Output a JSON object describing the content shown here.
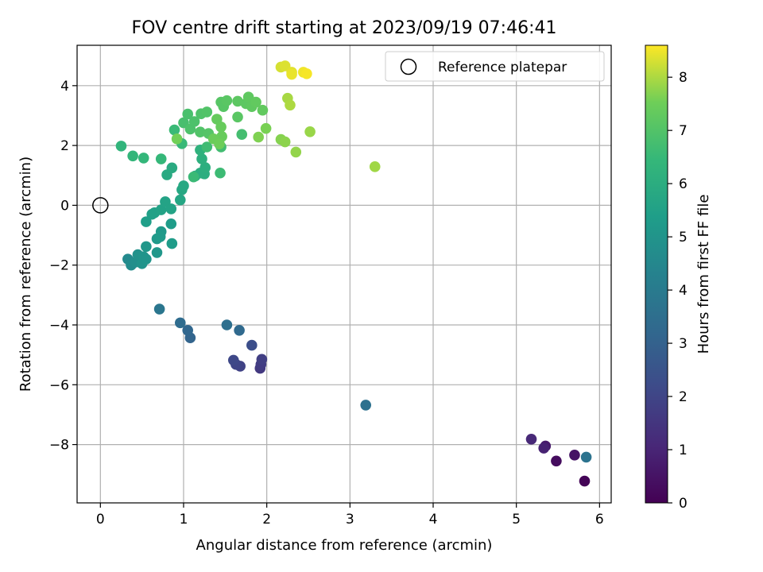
{
  "chart_data": {
    "type": "scatter",
    "title": "FOV centre drift starting at 2023/09/19 07:46:41",
    "xlabel": "Angular distance from reference (arcmin)",
    "ylabel": "Rotation from reference (arcmin)",
    "xlim": [
      -0.28,
      6.14
    ],
    "ylim": [
      -9.95,
      5.35
    ],
    "xticks": [
      0,
      1,
      2,
      3,
      4,
      5,
      6
    ],
    "yticks": [
      -8,
      -6,
      -4,
      -2,
      0,
      2,
      4
    ],
    "xtick_labels": [
      "0",
      "1",
      "2",
      "3",
      "4",
      "5",
      "6"
    ],
    "ytick_labels": [
      "−8",
      "−6",
      "−4",
      "−2",
      "0",
      "2",
      "4"
    ],
    "grid": true,
    "colormap": "viridis",
    "colorbar": {
      "label": "Hours from first FF file",
      "min": 0,
      "max": 8.6,
      "ticks": [
        0,
        1,
        2,
        3,
        4,
        5,
        6,
        7,
        8
      ],
      "tick_labels": [
        "0",
        "1",
        "2",
        "3",
        "4",
        "5",
        "6",
        "7",
        "8"
      ]
    },
    "legend": {
      "label": "Reference platepar",
      "location": "top-right"
    },
    "reference": {
      "x": 0,
      "y": 0
    },
    "points": [
      [
        5.82,
        -9.22,
        0.1
      ],
      [
        5.48,
        -8.55,
        0.3
      ],
      [
        5.7,
        -8.35,
        0.5
      ],
      [
        5.35,
        -8.05,
        0.7
      ],
      [
        5.33,
        -8.12,
        0.9
      ],
      [
        5.18,
        -7.82,
        1.1
      ],
      [
        1.92,
        -5.45,
        1.6
      ],
      [
        1.93,
        -5.32,
        1.7
      ],
      [
        1.94,
        -5.15,
        1.8
      ],
      [
        1.68,
        -5.38,
        1.9
      ],
      [
        1.63,
        -5.32,
        2.0
      ],
      [
        1.6,
        -5.18,
        2.1
      ],
      [
        1.82,
        -4.68,
        2.3
      ],
      [
        1.08,
        -4.43,
        3.1
      ],
      [
        1.05,
        -4.18,
        3.2
      ],
      [
        1.67,
        -4.18,
        3.3
      ],
      [
        0.96,
        -3.93,
        3.4
      ],
      [
        1.52,
        -4.0,
        3.5
      ],
      [
        3.19,
        -6.68,
        3.6
      ],
      [
        5.84,
        -8.42,
        3.7
      ],
      [
        0.71,
        -3.47,
        3.8
      ],
      [
        0.33,
        -1.8,
        4.6
      ],
      [
        0.37,
        -2.0,
        4.7
      ],
      [
        0.42,
        -1.9,
        4.8
      ],
      [
        0.45,
        -1.65,
        4.9
      ],
      [
        0.5,
        -1.95,
        4.95
      ],
      [
        0.52,
        -1.72,
        5.0
      ],
      [
        0.55,
        -1.8,
        5.0
      ],
      [
        0.55,
        -1.38,
        5.1
      ],
      [
        0.68,
        -1.58,
        5.1
      ],
      [
        0.68,
        -1.12,
        5.2
      ],
      [
        0.73,
        -0.88,
        5.2
      ],
      [
        0.72,
        -1.05,
        5.25
      ],
      [
        0.86,
        -1.28,
        5.3
      ],
      [
        0.85,
        -0.62,
        5.3
      ],
      [
        0.55,
        -0.55,
        5.4
      ],
      [
        0.62,
        -0.3,
        5.45
      ],
      [
        0.65,
        -0.25,
        5.5
      ],
      [
        0.73,
        -0.15,
        5.55
      ],
      [
        0.78,
        0.12,
        5.6
      ],
      [
        0.85,
        -0.12,
        5.6
      ],
      [
        0.96,
        0.18,
        5.7
      ],
      [
        0.98,
        0.52,
        5.75
      ],
      [
        1.0,
        0.65,
        5.8
      ],
      [
        0.8,
        1.02,
        5.85
      ],
      [
        0.86,
        1.25,
        5.9
      ],
      [
        1.14,
        0.98,
        5.95
      ],
      [
        1.2,
        1.08,
        6.0
      ],
      [
        1.25,
        1.05,
        6.0
      ],
      [
        1.26,
        1.26,
        6.05
      ],
      [
        1.22,
        1.55,
        6.1
      ],
      [
        1.2,
        1.85,
        6.2
      ],
      [
        0.25,
        1.98,
        6.3
      ],
      [
        0.39,
        1.65,
        6.35
      ],
      [
        0.52,
        1.58,
        6.4
      ],
      [
        0.73,
        1.55,
        6.45
      ],
      [
        0.98,
        2.06,
        6.5
      ],
      [
        0.89,
        2.52,
        6.55
      ],
      [
        1.12,
        0.95,
        6.55
      ],
      [
        1.44,
        1.08,
        6.6
      ],
      [
        1.28,
        1.95,
        6.65
      ],
      [
        1.45,
        1.95,
        6.7
      ],
      [
        1.7,
        2.37,
        6.75
      ],
      [
        1.0,
        2.76,
        6.8
      ],
      [
        1.05,
        3.05,
        6.85
      ],
      [
        1.08,
        2.55,
        6.9
      ],
      [
        1.13,
        2.8,
        6.9
      ],
      [
        1.21,
        3.06,
        6.95
      ],
      [
        1.28,
        3.12,
        7.0
      ],
      [
        1.2,
        2.45,
        7.0
      ],
      [
        1.3,
        2.4,
        7.05
      ],
      [
        1.45,
        3.45,
        7.1
      ],
      [
        1.48,
        3.3,
        7.1
      ],
      [
        1.52,
        3.5,
        7.15
      ],
      [
        1.65,
        2.95,
        7.15
      ],
      [
        1.65,
        3.48,
        7.2
      ],
      [
        1.75,
        3.4,
        7.2
      ],
      [
        1.78,
        3.62,
        7.25
      ],
      [
        1.82,
        3.3,
        7.25
      ],
      [
        1.87,
        3.45,
        7.3
      ],
      [
        1.95,
        3.18,
        7.3
      ],
      [
        1.4,
        2.88,
        7.35
      ],
      [
        1.45,
        2.62,
        7.4
      ],
      [
        1.46,
        2.3,
        7.4
      ],
      [
        1.36,
        2.22,
        7.45
      ],
      [
        1.43,
        2.05,
        7.5
      ],
      [
        0.92,
        2.22,
        7.55
      ],
      [
        1.99,
        2.57,
        7.6
      ],
      [
        1.9,
        2.28,
        7.65
      ],
      [
        2.17,
        2.2,
        7.7
      ],
      [
        2.22,
        2.12,
        7.75
      ],
      [
        2.35,
        1.78,
        7.8
      ],
      [
        2.52,
        2.46,
        7.85
      ],
      [
        3.3,
        1.29,
        7.9
      ],
      [
        2.25,
        3.58,
        7.95
      ],
      [
        2.28,
        3.35,
        8.0
      ],
      [
        2.17,
        4.62,
        8.3
      ],
      [
        2.22,
        4.66,
        8.35
      ],
      [
        2.3,
        4.45,
        8.4
      ],
      [
        2.3,
        4.38,
        8.45
      ],
      [
        2.44,
        4.45,
        8.5
      ],
      [
        2.48,
        4.4,
        8.55
      ]
    ]
  }
}
